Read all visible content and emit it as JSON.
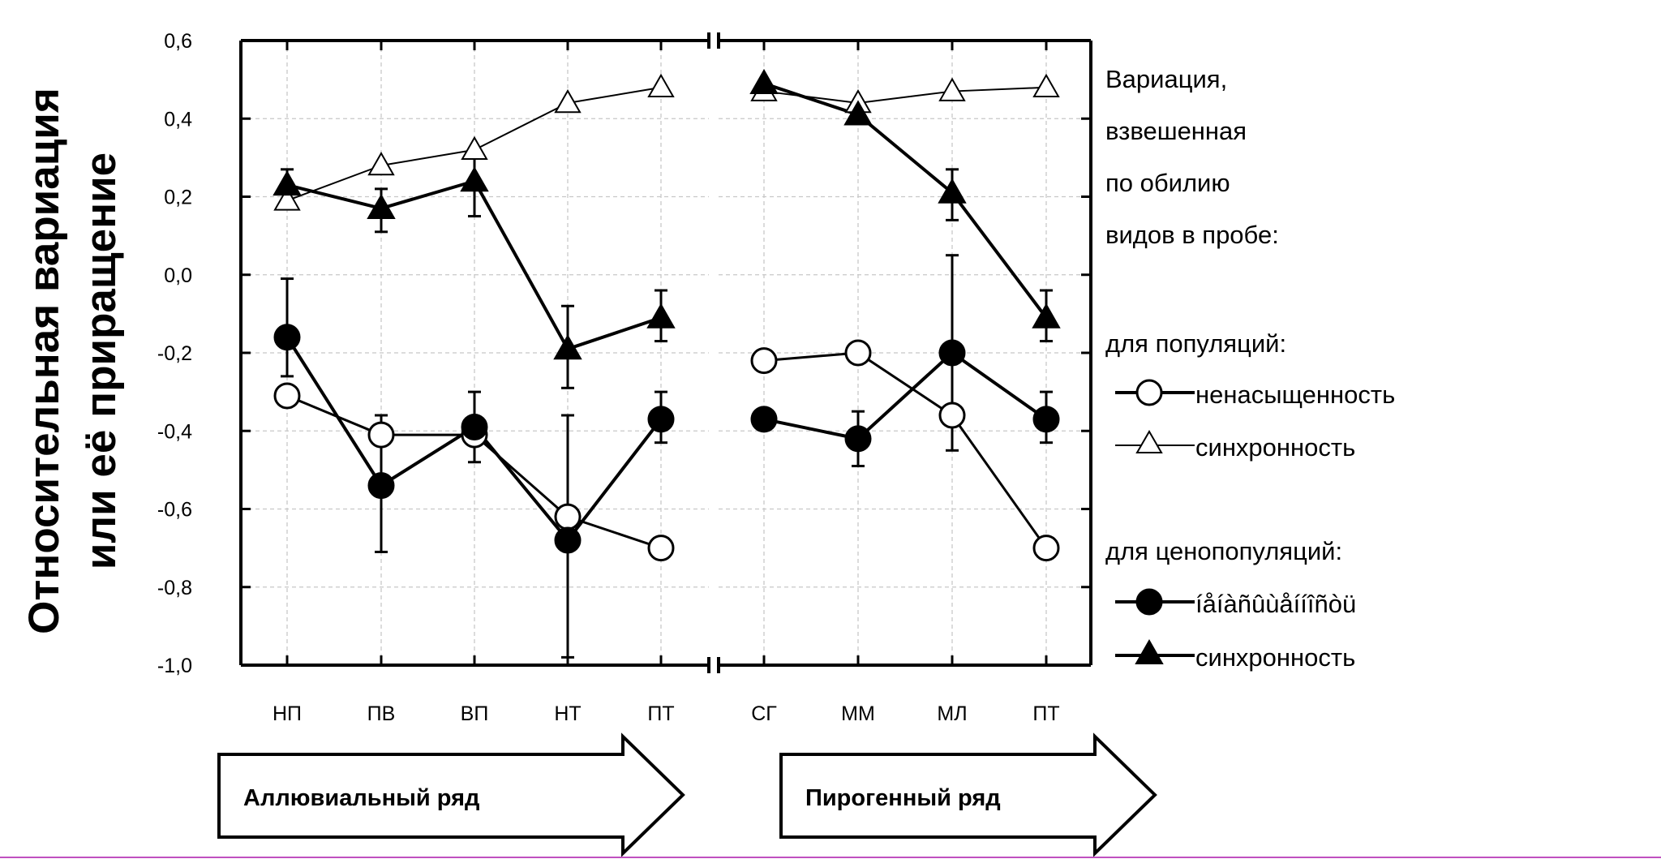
{
  "chart_data": {
    "type": "line",
    "ylabel": [
      "Относительная вариация",
      "или её приращение"
    ],
    "ylim": [
      -1.0,
      0.6
    ],
    "y_ticks": [
      0.6,
      0.4,
      0.2,
      0.0,
      -0.2,
      -0.4,
      -0.6,
      -0.8,
      -1.0
    ],
    "y_tick_labels": [
      "0,6",
      "0,4",
      "0,2",
      "0,0",
      "-0,2",
      "-0,4",
      "-0,6",
      "-0,8",
      "-1,0"
    ],
    "grid": true,
    "legend_position": "right",
    "panels": [
      {
        "categories": [
          "НП",
          "ПВ",
          "ВП",
          "НТ",
          "ПТ"
        ],
        "arrow_label": "Аллювиальный ряд"
      },
      {
        "categories": [
          "СГ",
          "ММ",
          "МЛ",
          "ПТ"
        ],
        "arrow_label": "Пирогенный ряд"
      }
    ],
    "legend": {
      "heading": [
        "Вариация,",
        "взвешенная",
        "по обилию",
        "видов в пробе:"
      ],
      "group1_title": "для популяций:",
      "group2_title": "для ценопопуляций:"
    },
    "series": [
      {
        "name": "ненасыщенность",
        "group": "для популяций:",
        "marker": "circle-open",
        "panels": [
          {
            "values": [
              -0.31,
              -0.41,
              -0.41,
              -0.62,
              -0.7
            ],
            "err_low": [
              null,
              null,
              null,
              null,
              null
            ],
            "err_high": [
              null,
              null,
              null,
              null,
              null
            ]
          },
          {
            "values": [
              -0.22,
              -0.2,
              -0.36,
              -0.7
            ],
            "err_low": [
              null,
              null,
              null,
              null
            ],
            "err_high": [
              null,
              null,
              null,
              null
            ]
          }
        ]
      },
      {
        "name": "синхронность",
        "group": "для популяций:",
        "marker": "triangle-open",
        "panels": [
          {
            "values": [
              0.19,
              0.28,
              0.32,
              0.44,
              0.48
            ],
            "err_low": [
              null,
              null,
              null,
              null,
              null
            ],
            "err_high": [
              null,
              null,
              null,
              null,
              null
            ]
          },
          {
            "values": [
              0.47,
              0.44,
              0.47,
              0.48
            ],
            "err_low": [
              null,
              null,
              null,
              null
            ],
            "err_high": [
              null,
              null,
              null,
              null
            ]
          }
        ]
      },
      {
        "name": "íåíàñûùåííîñòü",
        "group": "для ценопопуляций:",
        "marker": "circle-filled",
        "panels": [
          {
            "values": [
              -0.16,
              -0.54,
              -0.39,
              -0.68,
              -0.37
            ],
            "err_low": [
              -0.26,
              -0.71,
              -0.48,
              -0.98,
              -0.43
            ],
            "err_high": [
              -0.01,
              -0.36,
              -0.3,
              -0.36,
              -0.3
            ]
          },
          {
            "values": [
              -0.37,
              -0.42,
              -0.2,
              -0.37
            ],
            "err_low": [
              null,
              -0.49,
              -0.45,
              -0.43
            ],
            "err_high": [
              null,
              -0.35,
              0.05,
              -0.3
            ]
          }
        ]
      },
      {
        "name": "синхронность",
        "group": "для ценопопуляций:",
        "marker": "triangle-filled",
        "panels": [
          {
            "values": [
              0.23,
              0.17,
              0.24,
              -0.19,
              -0.11
            ],
            "err_low": [
              0.19,
              0.11,
              0.15,
              -0.29,
              -0.17
            ],
            "err_high": [
              0.27,
              0.22,
              0.31,
              -0.08,
              -0.04
            ]
          },
          {
            "values": [
              0.49,
              0.41,
              0.21,
              -0.11
            ],
            "err_low": [
              null,
              null,
              0.14,
              -0.17
            ],
            "err_high": [
              null,
              null,
              0.27,
              -0.04
            ]
          }
        ]
      }
    ]
  }
}
